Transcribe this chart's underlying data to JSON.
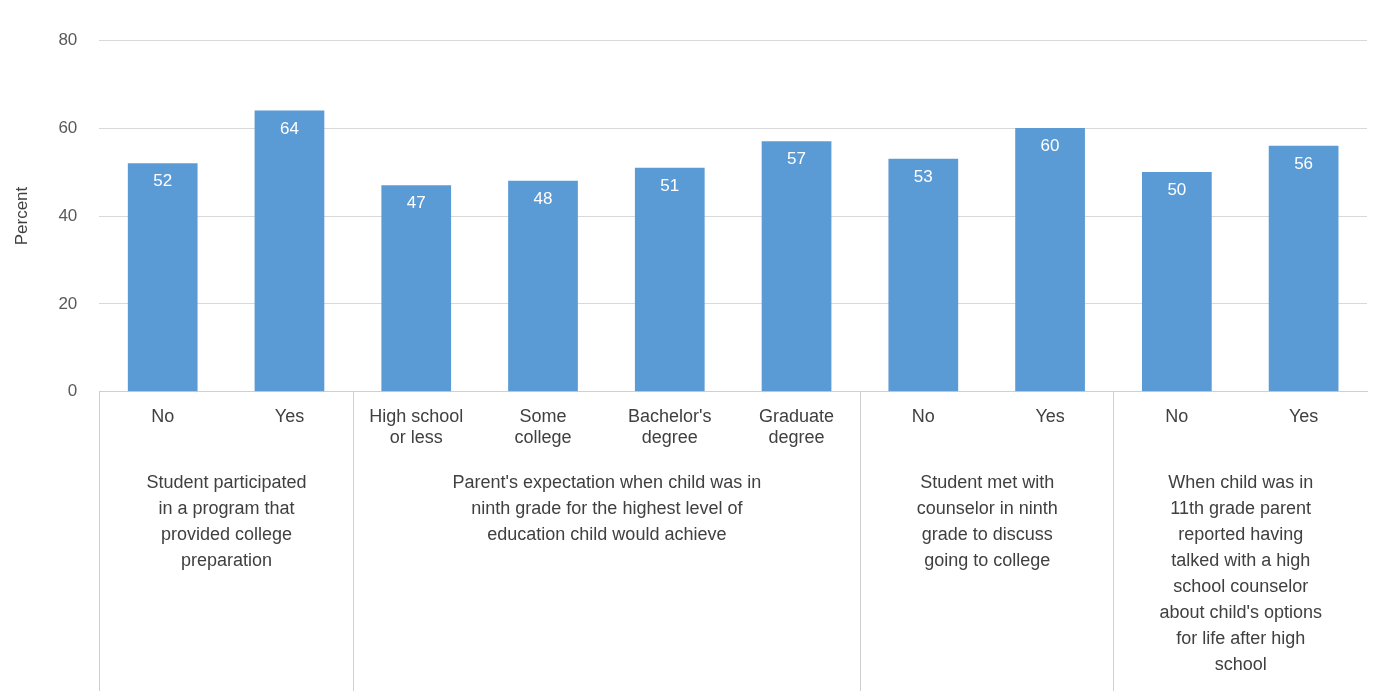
{
  "chart_data": {
    "type": "bar",
    "ylabel": "Percent",
    "categories": [
      "No",
      "Yes",
      "High school or less",
      "Some college",
      "Bachelor's degree",
      "Graduate degree",
      "No",
      "Yes",
      "No",
      "Yes"
    ],
    "values": [
      52,
      64,
      47,
      48,
      51,
      57,
      53,
      60,
      50,
      56
    ],
    "color": "#5b9bd5",
    "ylim": [
      0,
      80
    ],
    "yticks": [
      0,
      20,
      40,
      60,
      80
    ],
    "grid": "y",
    "data_labels": true,
    "annotations": [
      "Student participated in a program that provided college preparation",
      "Parent's expectation when child was in ninth grade for the highest level of education child would achieve",
      "Student met with counselor in ninth grade to discuss going to college",
      "When child was in 11th grade parent reported having talked with a high school counselor about child's options for life after high school"
    ]
  }
}
